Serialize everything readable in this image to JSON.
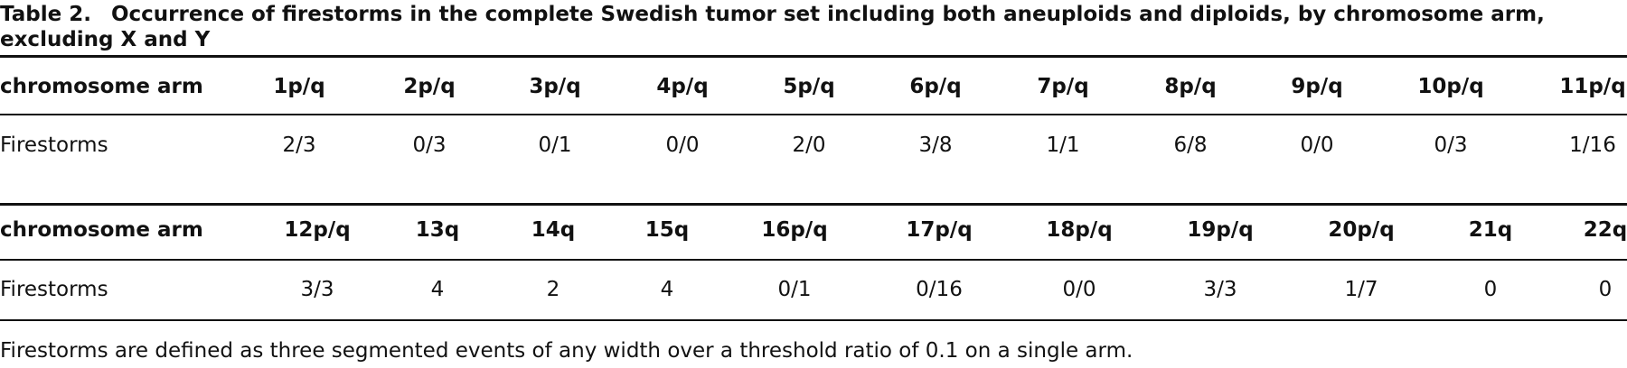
{
  "caption": {
    "label": "Table 2.",
    "text": "Occurrence of firestorms in the complete Swedish tumor set including both aneuploids and diploids, by chromosome arm, excluding X and Y"
  },
  "tables": [
    {
      "header": [
        "chromosome arm",
        "1p/q",
        "2p/q",
        "3p/q",
        "4p/q",
        "5p/q",
        "6p/q",
        "7p/q",
        "8p/q",
        "9p/q",
        "10p/q",
        "11p/q"
      ],
      "rows": [
        [
          "Firestorms",
          "2/3",
          "0/3",
          "0/1",
          "0/0",
          "2/0",
          "3/8",
          "1/1",
          "6/8",
          "0/0",
          "0/3",
          "1/16"
        ]
      ]
    },
    {
      "header": [
        "chromosome arm",
        "12p/q",
        "13q",
        "14q",
        "15q",
        "16p/q",
        "17p/q",
        "18p/q",
        "19p/q",
        "20p/q",
        "21q",
        "22q"
      ],
      "rows": [
        [
          "Firestorms",
          "3/3",
          "4",
          "2",
          "4",
          "0/1",
          "0/16",
          "0/0",
          "3/3",
          "1/7",
          "0",
          "0"
        ]
      ]
    }
  ],
  "footnote": "Firestorms are defined as three segmented events of any width over a threshold ratio of 0.1 on a single arm."
}
